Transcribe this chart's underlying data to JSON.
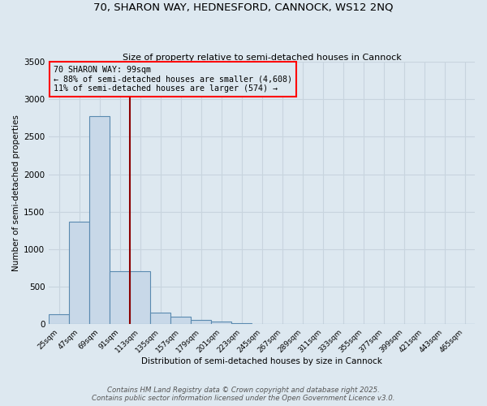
{
  "title1": "70, SHARON WAY, HEDNESFORD, CANNOCK, WS12 2NQ",
  "title2": "Size of property relative to semi-detached houses in Cannock",
  "xlabel": "Distribution of semi-detached houses by size in Cannock",
  "ylabel": "Number of semi-detached properties",
  "categories": [
    "25sqm",
    "47sqm",
    "69sqm",
    "91sqm",
    "113sqm",
    "135sqm",
    "157sqm",
    "179sqm",
    "201sqm",
    "223sqm",
    "245sqm",
    "267sqm",
    "289sqm",
    "311sqm",
    "333sqm",
    "355sqm",
    "377sqm",
    "399sqm",
    "421sqm",
    "443sqm",
    "465sqm"
  ],
  "values": [
    130,
    1370,
    2780,
    700,
    700,
    155,
    100,
    50,
    30,
    5,
    3,
    2,
    1,
    1,
    0,
    0,
    0,
    0,
    0,
    0,
    0
  ],
  "bar_color": "#c8d8e8",
  "bar_edge_color": "#5a8ab0",
  "grid_color": "#c8d4de",
  "bg_color": "#dde8f0",
  "ann_line1": "70 SHARON WAY: 99sqm",
  "ann_line2": "← 88% of semi-detached houses are smaller (4,608)",
  "ann_line3": "11% of semi-detached houses are larger (574) →",
  "red_line_x": 3.5,
  "ylim": [
    0,
    3500
  ],
  "yticks": [
    0,
    500,
    1000,
    1500,
    2000,
    2500,
    3000,
    3500
  ],
  "footnote1": "Contains HM Land Registry data © Crown copyright and database right 2025.",
  "footnote2": "Contains public sector information licensed under the Open Government Licence v3.0."
}
